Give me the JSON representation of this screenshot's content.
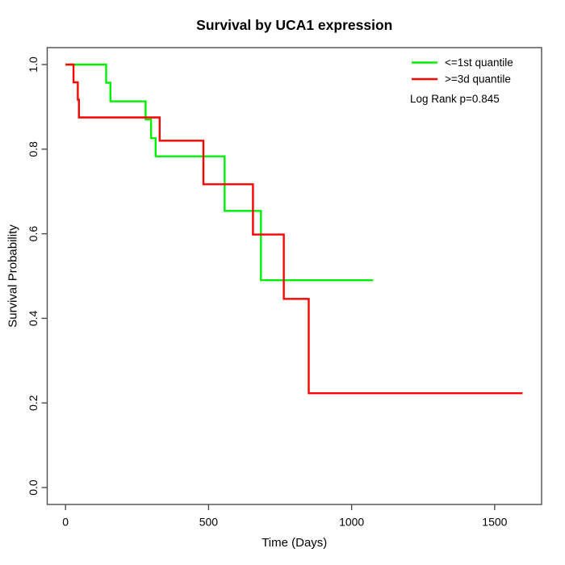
{
  "chart_data": {
    "type": "line",
    "subtype": "kaplan-meier-step",
    "title": "Survival by UCA1 expression",
    "xlabel": "Time (Days)",
    "ylabel": "Survival Probability",
    "annotation": "Log Rank p=0.845",
    "xlim": [
      -64,
      1664
    ],
    "ylim": [
      -0.04,
      1.04
    ],
    "xticks": [
      0,
      500,
      1000,
      1500
    ],
    "yticks": [
      "0.0",
      "0.2",
      "0.4",
      "0.6",
      "0.8",
      "1.0"
    ],
    "grid": false,
    "legend_position": "top-right",
    "axis_color": "#4d4d4d",
    "series": [
      {
        "name": "<=1st quantile",
        "color": "#00ee00",
        "points": [
          [
            0,
            1.0
          ],
          [
            142,
            0.957
          ],
          [
            157,
            0.913
          ],
          [
            280,
            0.87
          ],
          [
            299,
            0.826
          ],
          [
            315,
            0.783
          ],
          [
            556,
            0.654
          ],
          [
            683,
            0.49
          ]
        ],
        "end_time": 1075
      },
      {
        "name": ">=3d quantile",
        "color": "#ff0000",
        "points": [
          [
            0,
            1.0
          ],
          [
            28,
            0.958
          ],
          [
            43,
            0.917
          ],
          [
            47,
            0.875
          ],
          [
            329,
            0.82
          ],
          [
            482,
            0.717
          ],
          [
            655,
            0.598
          ],
          [
            763,
            0.446
          ],
          [
            850,
            0.223
          ]
        ],
        "end_time": 1597
      }
    ]
  }
}
